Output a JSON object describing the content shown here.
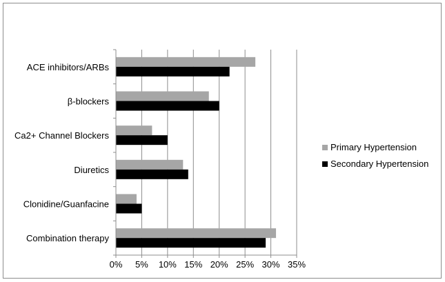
{
  "chart_data": {
    "type": "bar",
    "orientation": "horizontal",
    "categories": [
      "ACE inhibitors/ARBs",
      "β-blockers",
      "Ca2+ Channel Blockers",
      "Diuretics",
      "Clonidine/Guanfacine",
      "Combination therapy"
    ],
    "series": [
      {
        "name": "Primary Hypertension",
        "color": "#a6a6a6",
        "values": [
          27,
          18,
          7,
          13,
          4,
          31
        ]
      },
      {
        "name": "Secondary Hypertension",
        "color": "#000000",
        "values": [
          22,
          20,
          10,
          14,
          5,
          29
        ]
      }
    ],
    "x_ticks": [
      "0%",
      "5%",
      "10%",
      "15%",
      "20%",
      "25%",
      "30%",
      "35%"
    ],
    "xlim": [
      0,
      35
    ],
    "grid": true,
    "legend_position": "right"
  }
}
